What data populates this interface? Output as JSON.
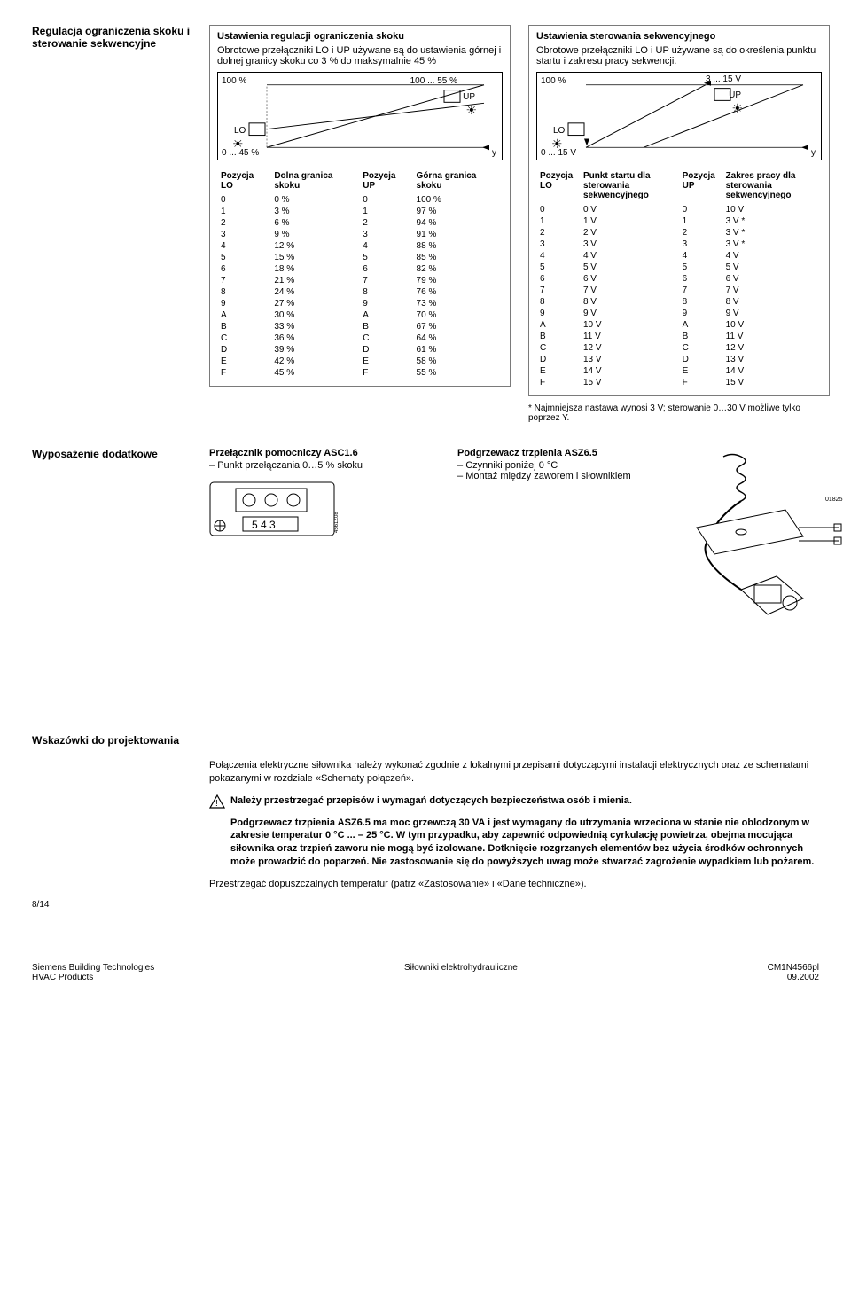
{
  "section1": {
    "sideTitle": "Regulacja ograniczenia skoku i sterowanie sekwencyjne",
    "leftCard": {
      "title": "Ustawienia regulacji ograniczenia skoku",
      "intro": "Obrotowe przełączniki LO i UP używane są do ustawienia górnej i dolnej granicy skoku co 3 % do maksymalnie 45 %",
      "chart": {
        "top_left": "100 %",
        "top_right": "100 ... 55 %",
        "up_label": "UP",
        "lo_label": "LO",
        "bottom_left": "0 ... 45 %",
        "bottom_right": "y"
      },
      "headers": [
        "Pozycja LO",
        "Dolna granica skoku",
        "Pozycja UP",
        "Górna granica skoku"
      ],
      "rows": [
        [
          "0",
          "0 %",
          "0",
          "100 %"
        ],
        [
          "1",
          "3 %",
          "1",
          "97 %"
        ],
        [
          "2",
          "6 %",
          "2",
          "94 %"
        ],
        [
          "3",
          "9 %",
          "3",
          "91 %"
        ],
        [
          "4",
          "12 %",
          "4",
          "88 %"
        ],
        [
          "5",
          "15 %",
          "5",
          "85 %"
        ],
        [
          "6",
          "18 %",
          "6",
          "82 %"
        ],
        [
          "7",
          "21 %",
          "7",
          "79 %"
        ],
        [
          "8",
          "24 %",
          "8",
          "76 %"
        ],
        [
          "9",
          "27 %",
          "9",
          "73 %"
        ],
        [
          "A",
          "30 %",
          "A",
          "70 %"
        ],
        [
          "B",
          "33 %",
          "B",
          "67 %"
        ],
        [
          "C",
          "36 %",
          "C",
          "64 %"
        ],
        [
          "D",
          "39 %",
          "D",
          "61 %"
        ],
        [
          "E",
          "42 %",
          "E",
          "58 %"
        ],
        [
          "F",
          "45 %",
          "F",
          "55 %"
        ]
      ]
    },
    "rightCard": {
      "title": "Ustawienia sterowania sekwencyjnego",
      "intro": "Obrotowe przełączniki LO i UP używane są do określenia punktu startu i zakresu pracy sekwencji.",
      "chart": {
        "top_left": "100 %",
        "top_right": "3 ... 15 V",
        "up_label": "UP",
        "lo_label": "LO",
        "bottom_left": "0 ... 15 V",
        "bottom_right": "y"
      },
      "headers": [
        "Pozycja LO",
        "Punkt startu dla sterowania sekwencyjnego",
        "Pozycja UP",
        "Zakres pracy dla sterowania sekwencyjnego"
      ],
      "rows": [
        [
          "0",
          "0 V",
          "0",
          "10 V"
        ],
        [
          "1",
          "1 V",
          "1",
          "3 V *"
        ],
        [
          "2",
          "2 V",
          "2",
          "3 V *"
        ],
        [
          "3",
          "3 V",
          "3",
          "3 V *"
        ],
        [
          "4",
          "4 V",
          "4",
          "4 V"
        ],
        [
          "5",
          "5 V",
          "5",
          "5 V"
        ],
        [
          "6",
          "6 V",
          "6",
          "6 V"
        ],
        [
          "7",
          "7 V",
          "7",
          "7 V"
        ],
        [
          "8",
          "8 V",
          "8",
          "8 V"
        ],
        [
          "9",
          "9 V",
          "9",
          "9 V"
        ],
        [
          "A",
          "10 V",
          "A",
          "10 V"
        ],
        [
          "B",
          "11 V",
          "B",
          "11 V"
        ],
        [
          "C",
          "12 V",
          "C",
          "12 V"
        ],
        [
          "D",
          "13 V",
          "D",
          "13 V"
        ],
        [
          "E",
          "14 V",
          "E",
          "14 V"
        ],
        [
          "F",
          "15 V",
          "F",
          "15 V"
        ]
      ],
      "footnote": "* Najmniejsza nastawa wynosi 3 V; sterowanie 0…30 V możliwe tylko poprzez Y."
    }
  },
  "section2": {
    "sideTitle": "Wyposażenie dodatkowe",
    "leftBlock": {
      "title": "Przełącznik pomocniczy ASC1.6",
      "bullet": "Punkt przełączania 0…5 % skoku",
      "svg_numbers": "5 4 3",
      "svg_code": "4561Z08"
    },
    "rightBlock": {
      "title": "Podgrzewacz trzpienia ASZ6.5",
      "bullets": [
        "Czynniki poniżej 0 °C",
        "Montaż między zaworem i siłownikiem"
      ],
      "svg_code": "01825"
    }
  },
  "section3": {
    "title": "Wskazówki do projektowania",
    "para1": "Połączenia elektryczne siłownika należy wykonać zgodnie z lokalnymi przepisami dotyczącymi instalacji elektrycznych oraz ze schematami pokazanymi w rozdziale «Schematy połączeń».",
    "para2": "Należy przestrzegać przepisów i wymagań dotyczących bezpieczeństwa osób i mienia.",
    "para3": "Podgrzewacz trzpienia ASZ6.5 ma moc grzewczą 30 VA i jest wymagany do utrzymania wrzeciona w stanie nie oblodzonym w zakresie temperatur 0 °C ... – 25 °C. W tym przypadku, aby zapewnić odpowiednią cyrkulację powietrza, obejma mocująca siłownika oraz trzpień zaworu nie mogą być izolowane. Dotknięcie rozgrzanych elementów bez użycia środków ochronnych może prowadzić do poparzeń. Nie zastosowanie się do powyższych uwag może stwarzać zagrożenie wypadkiem lub pożarem.",
    "para4": "Przestrzegać dopuszczalnych temperatur (patrz «Zastosowanie» i «Dane techniczne»)."
  },
  "footer": {
    "page": "8/14",
    "left1": "Siemens Building Technologies",
    "left2": "HVAC Products",
    "center": "Siłowniki elektrohydrauliczne",
    "right1": "CM1N4566pl",
    "right2": "09.2002"
  }
}
